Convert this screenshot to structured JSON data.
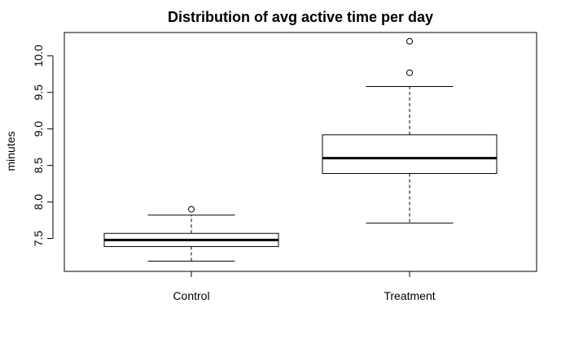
{
  "chart_data": {
    "type": "boxplot",
    "title": "Distribution of avg active time per day",
    "xlabel": "",
    "ylabel": "minutes",
    "ylim": [
      7.05,
      10.32
    ],
    "yticks": [
      "7.5",
      "8.0",
      "8.5",
      "9.0",
      "9.5",
      "10.0"
    ],
    "grid": false,
    "categories": [
      "Control",
      "Treatment"
    ],
    "boxes": [
      {
        "category": "Control",
        "whisker_low": 7.19,
        "q1": 7.39,
        "median": 7.48,
        "q3": 7.57,
        "whisker_high": 7.82,
        "outliers": [
          7.9
        ]
      },
      {
        "category": "Treatment",
        "whisker_low": 7.71,
        "q1": 8.39,
        "median": 8.6,
        "q3": 8.92,
        "whisker_high": 9.58,
        "outliers": [
          9.77,
          10.2
        ]
      }
    ]
  }
}
